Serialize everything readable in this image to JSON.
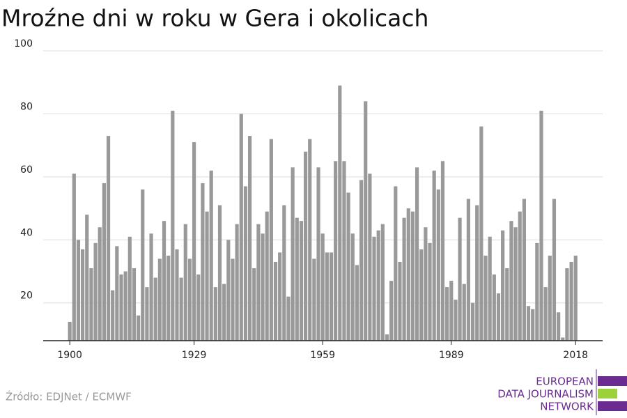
{
  "chart_data": {
    "type": "bar",
    "title": "Mroźne dni w roku w Gera i okolicach",
    "source": "Źródło: EDJNet / ECMWF",
    "logo": [
      "EUROPEAN",
      "DATA JOURNALISM",
      "NETWORK"
    ],
    "color": "#999999",
    "grid": true,
    "x": [
      1900,
      1901,
      1902,
      1903,
      1904,
      1905,
      1906,
      1907,
      1908,
      1909,
      1910,
      1911,
      1912,
      1913,
      1914,
      1915,
      1916,
      1917,
      1918,
      1919,
      1920,
      1921,
      1922,
      1923,
      1924,
      1925,
      1926,
      1927,
      1928,
      1929,
      1930,
      1931,
      1932,
      1933,
      1934,
      1935,
      1936,
      1937,
      1938,
      1939,
      1940,
      1941,
      1942,
      1943,
      1944,
      1945,
      1946,
      1947,
      1948,
      1949,
      1950,
      1951,
      1952,
      1953,
      1954,
      1955,
      1956,
      1957,
      1958,
      1959,
      1960,
      1961,
      1962,
      1963,
      1964,
      1965,
      1966,
      1967,
      1968,
      1969,
      1970,
      1971,
      1972,
      1973,
      1974,
      1975,
      1976,
      1977,
      1978,
      1979,
      1980,
      1981,
      1982,
      1983,
      1984,
      1985,
      1986,
      1987,
      1988,
      1989,
      1990,
      1991,
      1992,
      1993,
      1994,
      1995,
      1996,
      1997,
      1998,
      1999,
      2000,
      2001,
      2002,
      2003,
      2004,
      2005,
      2006,
      2007,
      2008,
      2009,
      2010,
      2011,
      2012,
      2013,
      2014,
      2015,
      2016,
      2017,
      2018
    ],
    "values": [
      14,
      61,
      40,
      37,
      48,
      31,
      39,
      44,
      58,
      73,
      24,
      38,
      29,
      30,
      41,
      31,
      16,
      56,
      25,
      42,
      28,
      34,
      46,
      35,
      81,
      37,
      28,
      45,
      34,
      71,
      29,
      58,
      49,
      62,
      25,
      51,
      26,
      40,
      34,
      45,
      80,
      57,
      73,
      31,
      45,
      42,
      49,
      72,
      33,
      36,
      51,
      22,
      63,
      47,
      46,
      68,
      72,
      34,
      63,
      42,
      36,
      36,
      65,
      89,
      65,
      55,
      42,
      32,
      59,
      84,
      61,
      41,
      43,
      45,
      10,
      27,
      57,
      33,
      47,
      50,
      49,
      63,
      37,
      44,
      39,
      62,
      56,
      65,
      25,
      27,
      21,
      47,
      26,
      53,
      20,
      51,
      76,
      35,
      41,
      29,
      23,
      43,
      31,
      46,
      44,
      49,
      53,
      19,
      18,
      39,
      81,
      25,
      35,
      53,
      17,
      9,
      31,
      33,
      35
    ],
    "xlim": [
      1893.8,
      2024.3
    ],
    "xticks": [
      1900,
      1929,
      1959,
      1989,
      2018
    ],
    "ylim": [
      8,
      100
    ],
    "yticks": [
      20,
      40,
      60,
      80,
      100
    ]
  }
}
